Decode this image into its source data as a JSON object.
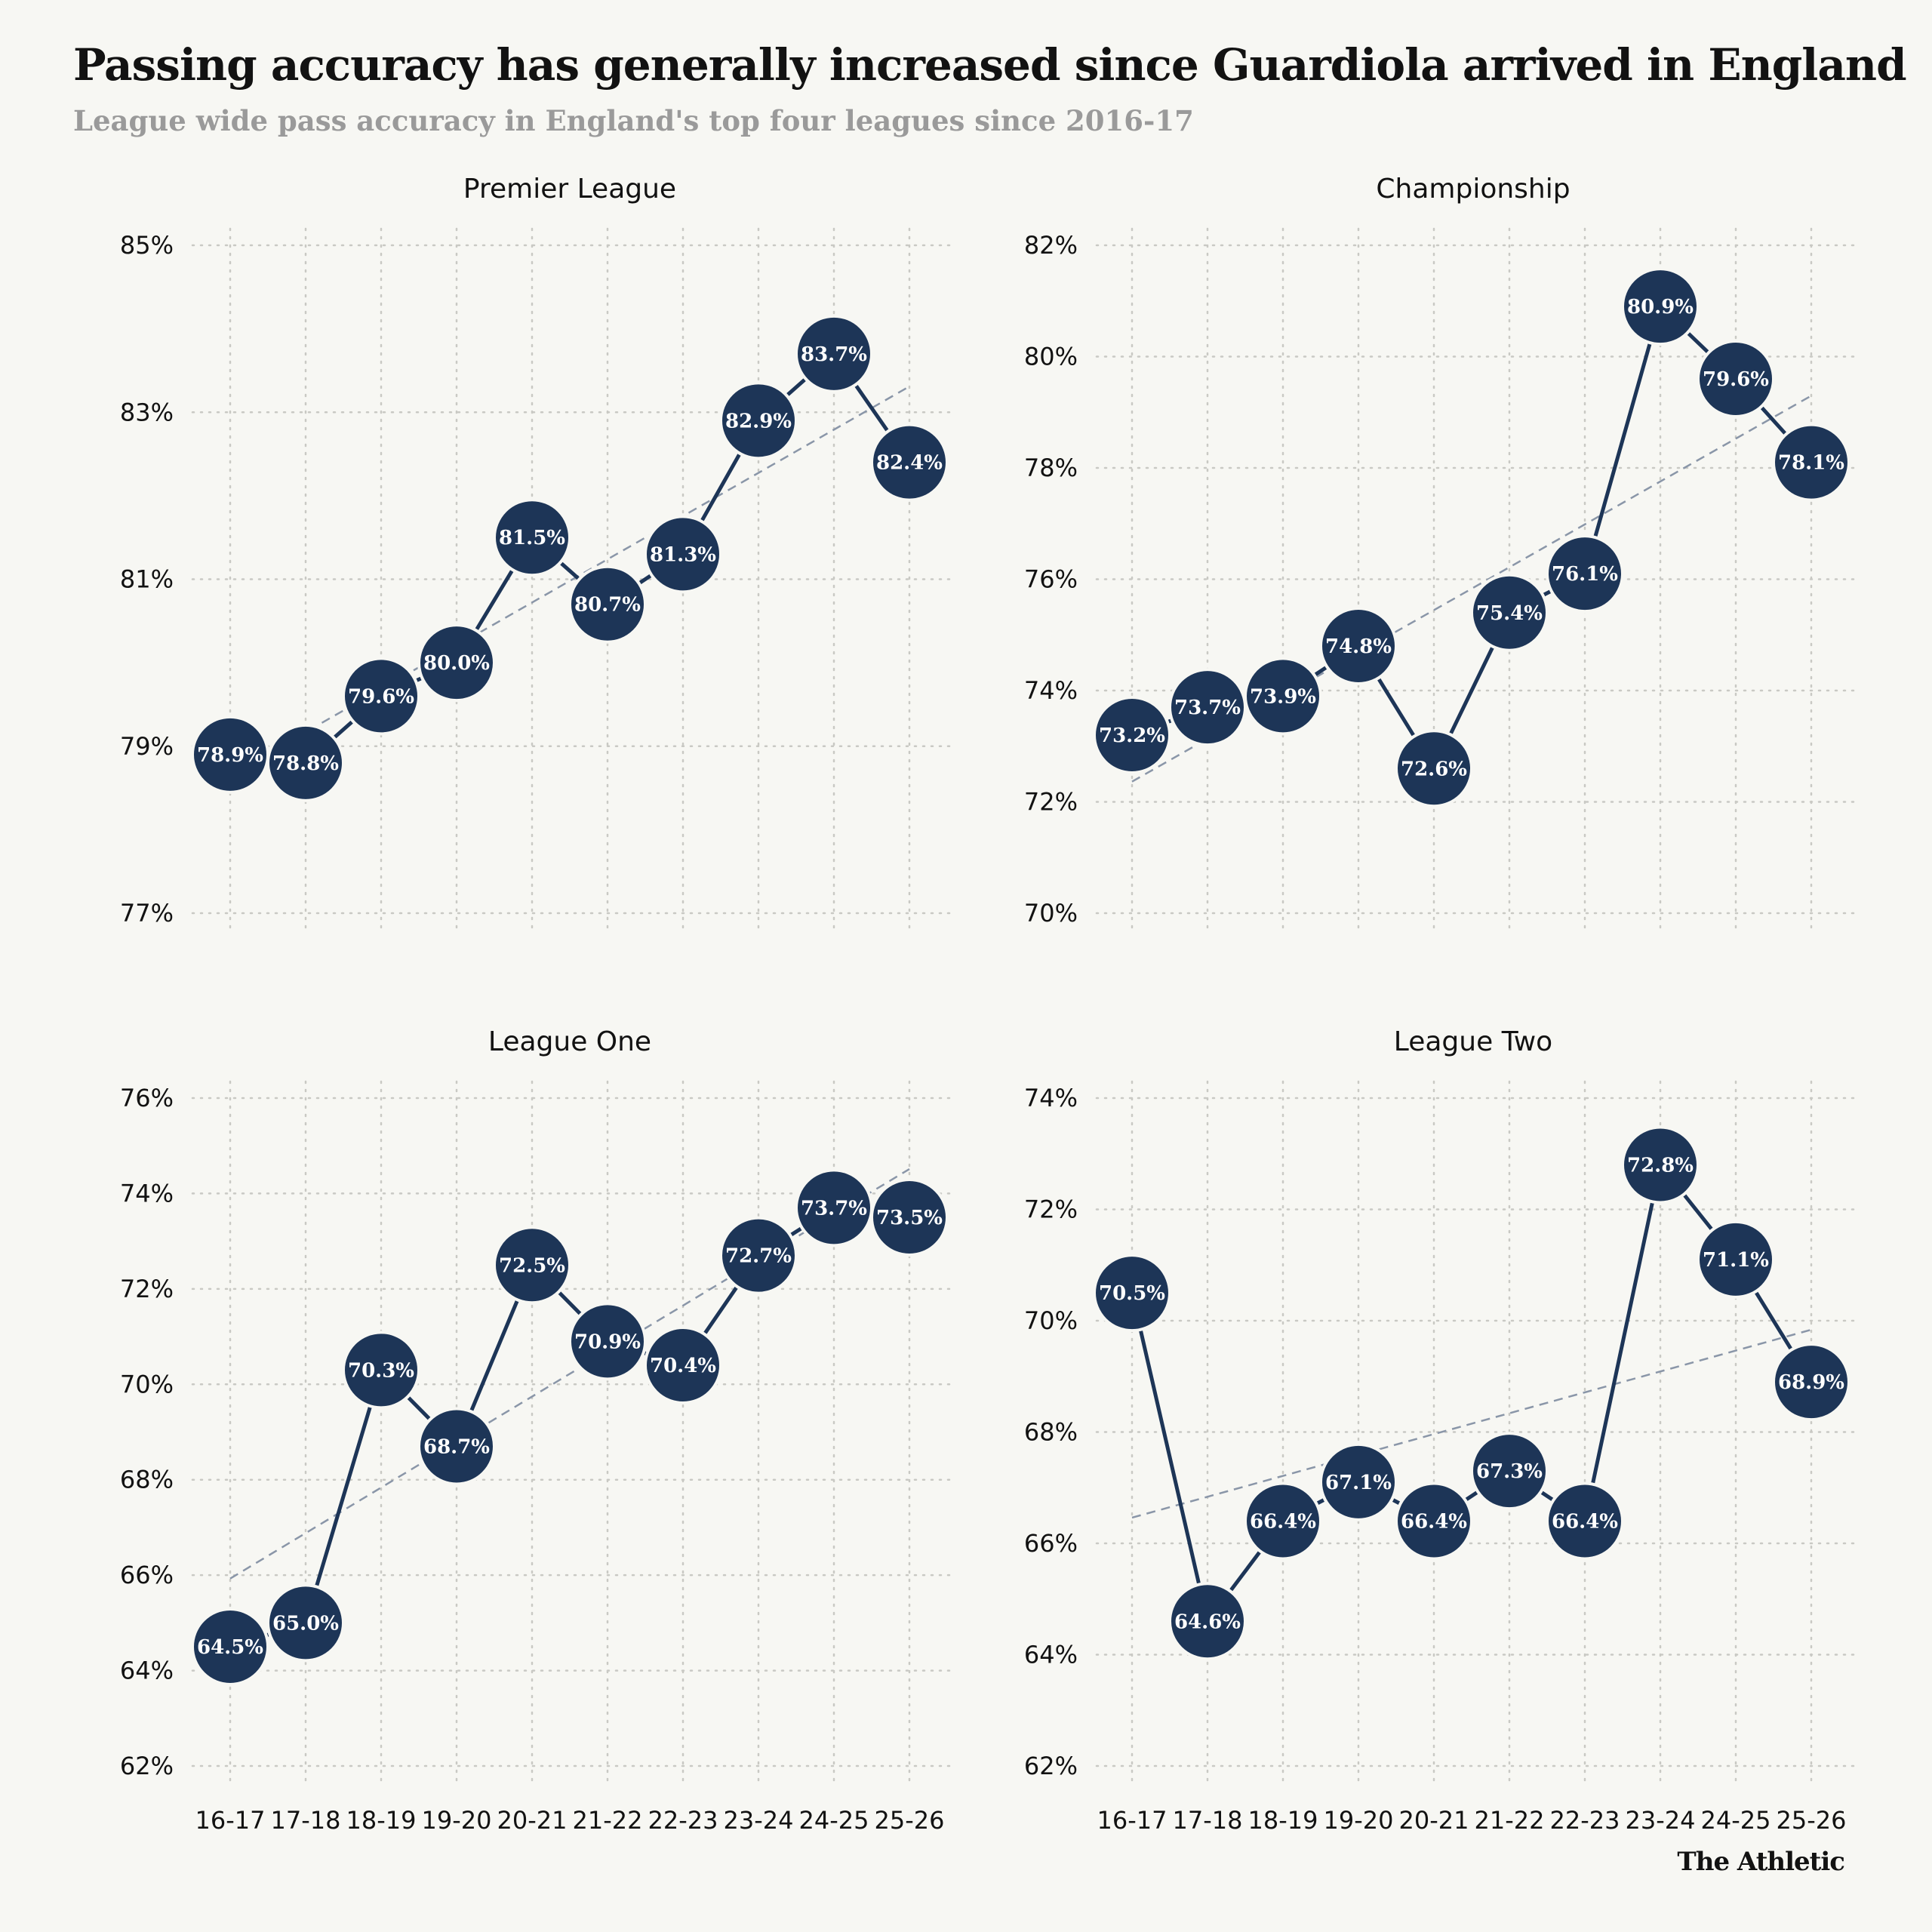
{
  "title": "Passing accuracy has generally increased since Guardiola arrived in England",
  "subtitle": "League wide pass accuracy in England's top four leagues since 2016-17",
  "brand": "The Athletic",
  "colors": {
    "background": "#f7f7f3",
    "marker": "#1d3557",
    "line": "#1d3557",
    "trend": "#8a96a8",
    "grid": "#c9c9c4",
    "label": "#ffffff"
  },
  "chart_data": [
    {
      "type": "line",
      "title": "Premier League",
      "x": [
        "16-17",
        "17-18",
        "18-19",
        "19-20",
        "20-21",
        "21-22",
        "22-23",
        "23-24",
        "24-25",
        "25-26"
      ],
      "y": [
        78.9,
        78.8,
        79.6,
        80.0,
        81.5,
        80.7,
        81.3,
        82.9,
        83.7,
        82.4
      ],
      "labels": [
        "78.9%",
        "78.8%",
        "79.6%",
        "80.0%",
        "81.5%",
        "80.7%",
        "81.3%",
        "82.9%",
        "83.7%",
        "82.4%"
      ],
      "yticks": [
        77,
        79,
        81,
        83,
        85
      ],
      "ytick_labels": [
        "77%",
        "79%",
        "81%",
        "83%",
        "85%"
      ],
      "ylim": [
        77,
        85
      ],
      "trendline": true,
      "grid": true
    },
    {
      "type": "line",
      "title": "Championship",
      "x": [
        "16-17",
        "17-18",
        "18-19",
        "19-20",
        "20-21",
        "21-22",
        "22-23",
        "23-24",
        "24-25",
        "25-26"
      ],
      "y": [
        73.2,
        73.7,
        73.9,
        74.8,
        72.6,
        75.4,
        76.1,
        80.9,
        79.6,
        78.1
      ],
      "labels": [
        "73.2%",
        "73.7%",
        "73.9%",
        "74.8%",
        "72.6%",
        "75.4%",
        "76.1%",
        "80.9%",
        "79.6%",
        "78.1%"
      ],
      "yticks": [
        70,
        72,
        74,
        76,
        78,
        80,
        82
      ],
      "ytick_labels": [
        "70%",
        "72%",
        "74%",
        "76%",
        "78%",
        "80%",
        "82%"
      ],
      "ylim": [
        70,
        82
      ],
      "trendline": true,
      "grid": true
    },
    {
      "type": "line",
      "title": "League One",
      "x": [
        "16-17",
        "17-18",
        "18-19",
        "19-20",
        "20-21",
        "21-22",
        "22-23",
        "23-24",
        "24-25",
        "25-26"
      ],
      "y": [
        64.5,
        65.0,
        70.3,
        68.7,
        72.5,
        70.9,
        70.4,
        72.7,
        73.7,
        73.5
      ],
      "labels": [
        "64.5%",
        "65.0%",
        "70.3%",
        "68.7%",
        "72.5%",
        "70.9%",
        "70.4%",
        "72.7%",
        "73.7%",
        "73.5%"
      ],
      "yticks": [
        62,
        64,
        66,
        68,
        70,
        72,
        74,
        76
      ],
      "ytick_labels": [
        "62%",
        "64%",
        "66%",
        "68%",
        "70%",
        "72%",
        "74%",
        "76%"
      ],
      "ylim": [
        62,
        76
      ],
      "trendline": true,
      "grid": true
    },
    {
      "type": "line",
      "title": "League Two",
      "x": [
        "16-17",
        "17-18",
        "18-19",
        "19-20",
        "20-21",
        "21-22",
        "22-23",
        "23-24",
        "24-25",
        "25-26"
      ],
      "y": [
        70.5,
        64.6,
        66.4,
        67.1,
        66.4,
        67.3,
        66.4,
        72.8,
        71.1,
        68.9
      ],
      "labels": [
        "70.5%",
        "64.6%",
        "66.4%",
        "67.1%",
        "66.4%",
        "67.3%",
        "66.4%",
        "72.8%",
        "71.1%",
        "68.9%"
      ],
      "yticks": [
        62,
        64,
        66,
        68,
        70,
        72,
        74
      ],
      "ytick_labels": [
        "62%",
        "64%",
        "66%",
        "68%",
        "70%",
        "72%",
        "74%"
      ],
      "ylim": [
        62,
        74
      ],
      "trendline": true,
      "grid": true
    }
  ]
}
